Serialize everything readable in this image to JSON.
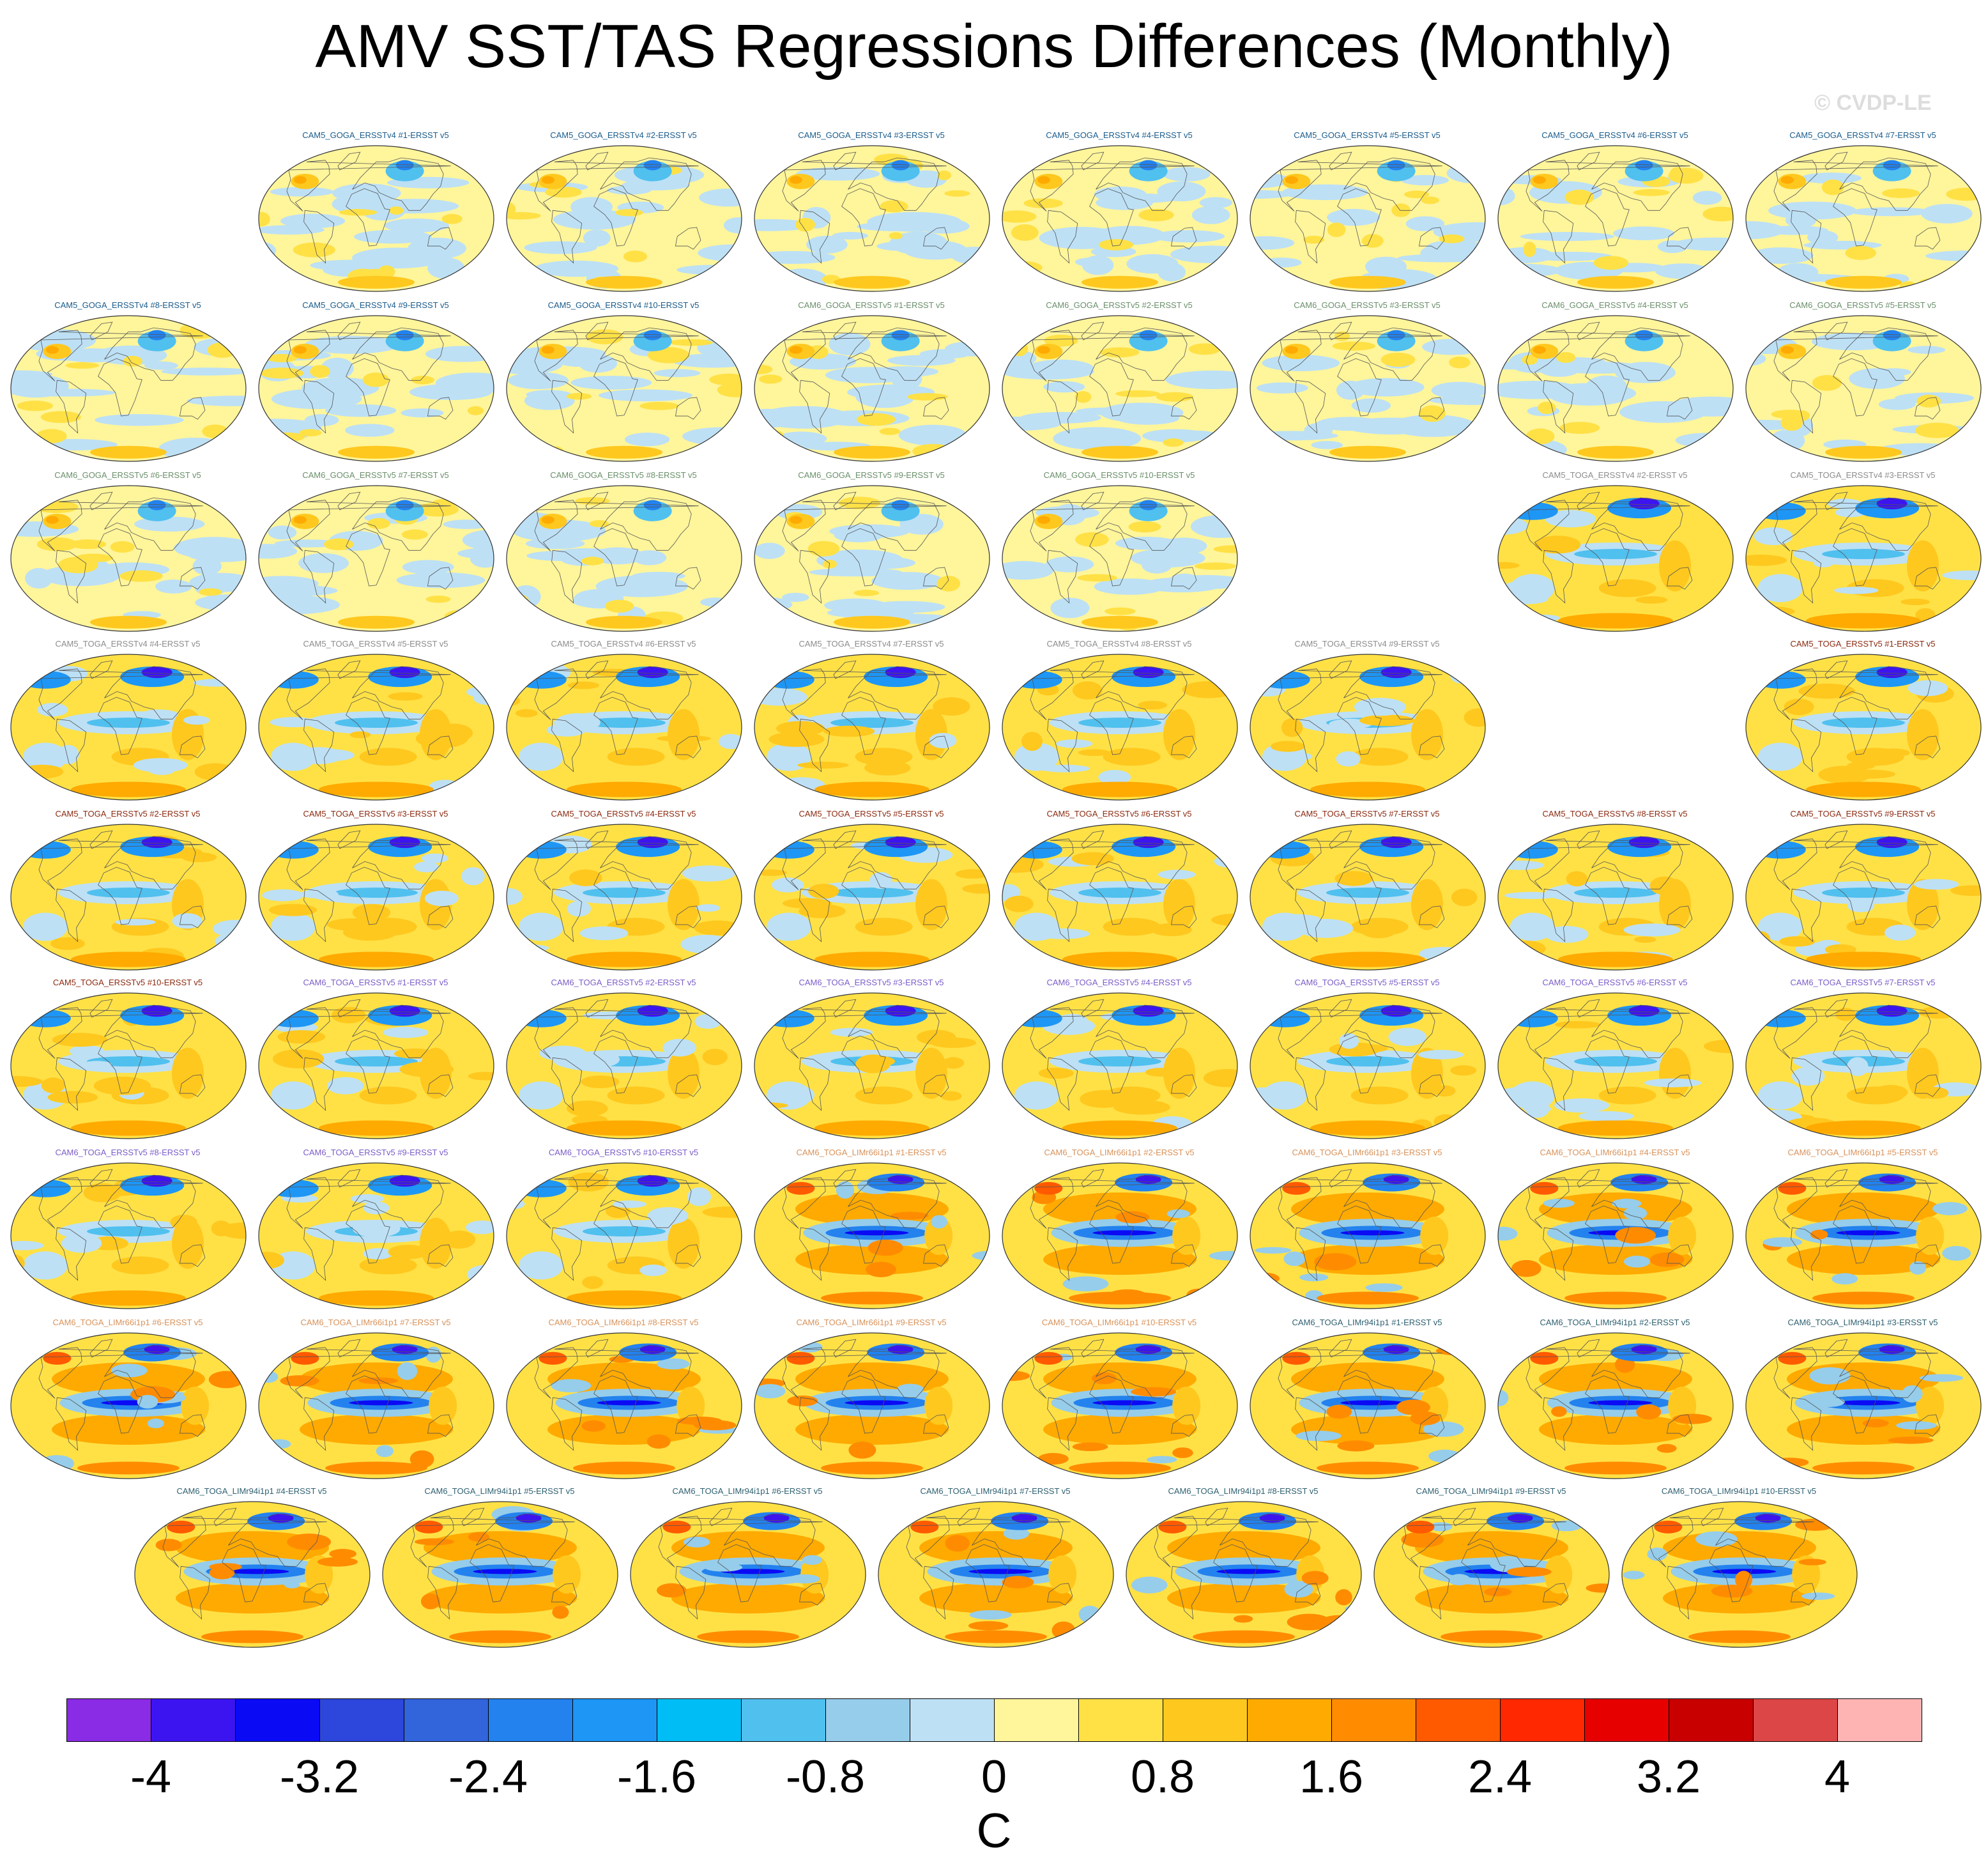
{
  "title": "AMV SST/TAS Regressions Differences (Monthly)",
  "watermark": "© CVDP-LE",
  "chart_data": {
    "type": "heatmap",
    "title": "AMV SST/TAS Regressions Differences (Monthly)",
    "projection": "global robinson maps",
    "units": "C",
    "colorbar": {
      "levels": [
        -4.4,
        -4,
        -3.6,
        -3.2,
        -2.8,
        -2.4,
        -2,
        -1.6,
        -1.2,
        -0.8,
        -0.4,
        0,
        0.4,
        0.8,
        1.2,
        1.6,
        2,
        2.4,
        2.8,
        3.2,
        3.6,
        4,
        4.4
      ],
      "tick_labels": [
        "-4",
        "-3.2",
        "-2.4",
        "-1.6",
        "-0.8",
        "0",
        "0.8",
        "1.6",
        "2.4",
        "3.2",
        "4"
      ],
      "tick_values": [
        -4,
        -3.2,
        -2.4,
        -1.6,
        -0.8,
        0,
        0.8,
        1.6,
        2.4,
        3.2,
        4
      ],
      "colors": [
        "#8a2be6",
        "#3c14f0",
        "#0a0af5",
        "#2d46dc",
        "#3264dc",
        "#2382ee",
        "#1e96f5",
        "#00bef5",
        "#50c0ef",
        "#96cdeb",
        "#bde0f5",
        "#fff59b",
        "#ffe146",
        "#ffc81e",
        "#ffaa00",
        "#ff8c00",
        "#ff5a00",
        "#ff2800",
        "#e60000",
        "#c80000",
        "#dc4646",
        "#ffb4b4"
      ]
    },
    "panels": [
      {
        "label": "CAM5_GOGA_ERSSTv4 #1-ERSST v5",
        "color": "#1a5c8c",
        "style": "goga"
      },
      {
        "label": "CAM5_GOGA_ERSSTv4 #2-ERSST v5",
        "color": "#1a5c8c",
        "style": "goga"
      },
      {
        "label": "CAM5_GOGA_ERSSTv4 #3-ERSST v5",
        "color": "#1a5c8c",
        "style": "goga"
      },
      {
        "label": "CAM5_GOGA_ERSSTv4 #4-ERSST v5",
        "color": "#1a5c8c",
        "style": "goga"
      },
      {
        "label": "CAM5_GOGA_ERSSTv4 #5-ERSST v5",
        "color": "#1a5c8c",
        "style": "goga"
      },
      {
        "label": "CAM5_GOGA_ERSSTv4 #6-ERSST v5",
        "color": "#1a5c8c",
        "style": "goga"
      },
      {
        "label": "CAM5_GOGA_ERSSTv4 #7-ERSST v5",
        "color": "#1a5c8c",
        "style": "goga"
      },
      {
        "label": "CAM5_GOGA_ERSSTv4 #8-ERSST v5",
        "color": "#1a5c8c",
        "style": "goga"
      },
      {
        "label": "CAM5_GOGA_ERSSTv4 #9-ERSST v5",
        "color": "#1a5c8c",
        "style": "goga"
      },
      {
        "label": "CAM5_GOGA_ERSSTv4 #10-ERSST v5",
        "color": "#1a5c8c",
        "style": "goga"
      },
      {
        "label": "CAM6_GOGA_ERSSTv5 #1-ERSST v5",
        "color": "#6a8f6a",
        "style": "goga"
      },
      {
        "label": "CAM6_GOGA_ERSSTv5 #2-ERSST v5",
        "color": "#6a8f6a",
        "style": "goga"
      },
      {
        "label": "CAM6_GOGA_ERSSTv5 #3-ERSST v5",
        "color": "#6a8f6a",
        "style": "goga"
      },
      {
        "label": "CAM6_GOGA_ERSSTv5 #4-ERSST v5",
        "color": "#6a8f6a",
        "style": "goga"
      },
      {
        "label": "CAM6_GOGA_ERSSTv5 #5-ERSST v5",
        "color": "#6a8f6a",
        "style": "goga"
      },
      {
        "label": "CAM6_GOGA_ERSSTv5 #6-ERSST v5",
        "color": "#6a8f6a",
        "style": "goga"
      },
      {
        "label": "CAM6_GOGA_ERSSTv5 #7-ERSST v5",
        "color": "#6a8f6a",
        "style": "goga"
      },
      {
        "label": "CAM6_GOGA_ERSSTv5 #8-ERSST v5",
        "color": "#6a8f6a",
        "style": "goga"
      },
      {
        "label": "CAM6_GOGA_ERSSTv5 #9-ERSST v5",
        "color": "#6a8f6a",
        "style": "goga"
      },
      {
        "label": "CAM6_GOGA_ERSSTv5 #10-ERSST v5",
        "color": "#6a8f6a",
        "style": "goga"
      },
      {
        "label": "CAM5_TOGA_ERSSTv4 #2-ERSST v5",
        "color": "#8c8c8c",
        "style": "toga"
      },
      {
        "label": "CAM5_TOGA_ERSSTv4 #3-ERSST v5",
        "color": "#8c8c8c",
        "style": "toga"
      },
      {
        "label": "CAM5_TOGA_ERSSTv4 #4-ERSST v5",
        "color": "#8c8c8c",
        "style": "toga"
      },
      {
        "label": "CAM5_TOGA_ERSSTv4 #5-ERSST v5",
        "color": "#8c8c8c",
        "style": "toga"
      },
      {
        "label": "CAM5_TOGA_ERSSTv4 #6-ERSST v5",
        "color": "#8c8c8c",
        "style": "toga"
      },
      {
        "label": "CAM5_TOGA_ERSSTv4 #7-ERSST v5",
        "color": "#8c8c8c",
        "style": "toga"
      },
      {
        "label": "CAM5_TOGA_ERSSTv4 #8-ERSST v5",
        "color": "#8c8c8c",
        "style": "toga"
      },
      {
        "label": "CAM5_TOGA_ERSSTv4 #9-ERSST v5",
        "color": "#8c8c8c",
        "style": "toga"
      },
      {
        "label": "CAM5_TOGA_ERSSTv5 #1-ERSST v5",
        "color": "#8b2a10",
        "style": "toga"
      },
      {
        "label": "CAM5_TOGA_ERSSTv5 #2-ERSST v5",
        "color": "#8b2a10",
        "style": "toga"
      },
      {
        "label": "CAM5_TOGA_ERSSTv5 #3-ERSST v5",
        "color": "#8b2a10",
        "style": "toga"
      },
      {
        "label": "CAM5_TOGA_ERSSTv5 #4-ERSST v5",
        "color": "#8b2a10",
        "style": "toga"
      },
      {
        "label": "CAM5_TOGA_ERSSTv5 #5-ERSST v5",
        "color": "#8b2a10",
        "style": "toga"
      },
      {
        "label": "CAM5_TOGA_ERSSTv5 #6-ERSST v5",
        "color": "#8b2a10",
        "style": "toga"
      },
      {
        "label": "CAM5_TOGA_ERSSTv5 #7-ERSST v5",
        "color": "#8b2a10",
        "style": "toga"
      },
      {
        "label": "CAM5_TOGA_ERSSTv5 #8-ERSST v5",
        "color": "#8b2a10",
        "style": "toga"
      },
      {
        "label": "CAM5_TOGA_ERSSTv5 #9-ERSST v5",
        "color": "#8b2a10",
        "style": "toga"
      },
      {
        "label": "CAM5_TOGA_ERSSTv5 #10-ERSST v5",
        "color": "#8b2a10",
        "style": "toga"
      },
      {
        "label": "CAM6_TOGA_ERSSTv5 #1-ERSST v5",
        "color": "#7b5cc8",
        "style": "toga"
      },
      {
        "label": "CAM6_TOGA_ERSSTv5 #2-ERSST v5",
        "color": "#7b5cc8",
        "style": "toga"
      },
      {
        "label": "CAM6_TOGA_ERSSTv5 #3-ERSST v5",
        "color": "#7b5cc8",
        "style": "toga"
      },
      {
        "label": "CAM6_TOGA_ERSSTv5 #4-ERSST v5",
        "color": "#7b5cc8",
        "style": "toga"
      },
      {
        "label": "CAM6_TOGA_ERSSTv5 #5-ERSST v5",
        "color": "#7b5cc8",
        "style": "toga"
      },
      {
        "label": "CAM6_TOGA_ERSSTv5 #6-ERSST v5",
        "color": "#7b5cc8",
        "style": "toga"
      },
      {
        "label": "CAM6_TOGA_ERSSTv5 #7-ERSST v5",
        "color": "#7b5cc8",
        "style": "toga"
      },
      {
        "label": "CAM6_TOGA_ERSSTv5 #8-ERSST v5",
        "color": "#7b5cc8",
        "style": "toga"
      },
      {
        "label": "CAM6_TOGA_ERSSTv5 #9-ERSST v5",
        "color": "#7b5cc8",
        "style": "toga"
      },
      {
        "label": "CAM6_TOGA_ERSSTv5 #10-ERSST v5",
        "color": "#7b5cc8",
        "style": "toga"
      },
      {
        "label": "CAM6_TOGA_LIMr66i1p1 #1-ERSST v5",
        "color": "#d8925a",
        "style": "lim"
      },
      {
        "label": "CAM6_TOGA_LIMr66i1p1 #2-ERSST v5",
        "color": "#d8925a",
        "style": "lim"
      },
      {
        "label": "CAM6_TOGA_LIMr66i1p1 #3-ERSST v5",
        "color": "#d8925a",
        "style": "lim"
      },
      {
        "label": "CAM6_TOGA_LIMr66i1p1 #4-ERSST v5",
        "color": "#d8925a",
        "style": "lim"
      },
      {
        "label": "CAM6_TOGA_LIMr66i1p1 #5-ERSST v5",
        "color": "#d8925a",
        "style": "lim"
      },
      {
        "label": "CAM6_TOGA_LIMr66i1p1 #6-ERSST v5",
        "color": "#d8925a",
        "style": "lim"
      },
      {
        "label": "CAM6_TOGA_LIMr66i1p1 #7-ERSST v5",
        "color": "#d8925a",
        "style": "lim"
      },
      {
        "label": "CAM6_TOGA_LIMr66i1p1 #8-ERSST v5",
        "color": "#d8925a",
        "style": "lim"
      },
      {
        "label": "CAM6_TOGA_LIMr66i1p1 #9-ERSST v5",
        "color": "#d8925a",
        "style": "lim"
      },
      {
        "label": "CAM6_TOGA_LIMr66i1p1 #10-ERSST v5",
        "color": "#d8925a",
        "style": "lim"
      },
      {
        "label": "CAM6_TOGA_LIMr94i1p1 #1-ERSST v5",
        "color": "#2e6070",
        "style": "lim"
      },
      {
        "label": "CAM6_TOGA_LIMr94i1p1 #2-ERSST v5",
        "color": "#2e6070",
        "style": "lim"
      },
      {
        "label": "CAM6_TOGA_LIMr94i1p1 #3-ERSST v5",
        "color": "#2e6070",
        "style": "lim"
      },
      {
        "label": "CAM6_TOGA_LIMr94i1p1 #4-ERSST v5",
        "color": "#2e6070",
        "style": "lim"
      },
      {
        "label": "CAM6_TOGA_LIMr94i1p1 #5-ERSST v5",
        "color": "#2e6070",
        "style": "lim"
      },
      {
        "label": "CAM6_TOGA_LIMr94i1p1 #6-ERSST v5",
        "color": "#2e6070",
        "style": "lim"
      },
      {
        "label": "CAM6_TOGA_LIMr94i1p1 #7-ERSST v5",
        "color": "#2e6070",
        "style": "lim"
      },
      {
        "label": "CAM6_TOGA_LIMr94i1p1 #8-ERSST v5",
        "color": "#2e6070",
        "style": "lim"
      },
      {
        "label": "CAM6_TOGA_LIMr94i1p1 #9-ERSST v5",
        "color": "#2e6070",
        "style": "lim"
      },
      {
        "label": "CAM6_TOGA_LIMr94i1p1 #10-ERSST v5",
        "color": "#2e6070",
        "style": "lim"
      }
    ]
  }
}
